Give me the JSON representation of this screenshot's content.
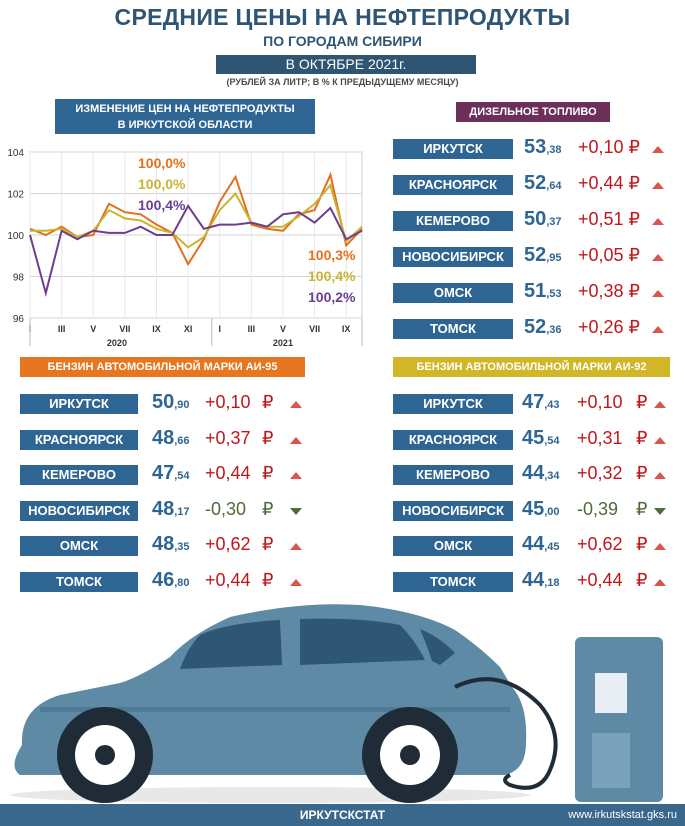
{
  "header": {
    "title": "СРЕДНИЕ ЦЕНЫ НА НЕФТЕПРОДУКТЫ",
    "subtitle": "ПО ГОРОДАМ СИБИРИ",
    "date": "В ОКТЯБРЕ 2021г.",
    "units": "(РУБЛЕЙ ЗА ЛИТР; В % К ПРЕДЫДУЩЕМУ МЕСЯЦУ)"
  },
  "chart_title_line1": "ИЗМЕНЕНИЕ ЦЕН НА НЕФТЕПРОДУКТЫ",
  "chart_title_line2": "В ИРКУТСКОЙ ОБЛАСТИ",
  "chart_data": {
    "type": "line",
    "title": "ИЗМЕНЕНИЕ ЦЕН НА НЕФТЕПРОДУКТЫ В ИРКУТСКОЙ ОБЛАСТИ",
    "ylim": [
      96,
      104
    ],
    "yticks": [
      "104",
      "102",
      "100",
      "98",
      "96"
    ],
    "xticks": [
      "I",
      "III",
      "V",
      "VII",
      "IX",
      "XI",
      "I",
      "III",
      "V",
      "VII",
      "IX"
    ],
    "years": [
      "2020",
      "2021"
    ],
    "colors": {
      "diesel": "#e2701c",
      "ai95": "#c8b332",
      "ai92": "#6b3e8e"
    },
    "series": [
      {
        "name": "diesel",
        "values": [
          100.3,
          100.0,
          100.4,
          99.9,
          100.0,
          101.5,
          101.1,
          101.0,
          100.5,
          100.1,
          98.6,
          99.8,
          101.6,
          102.8,
          100.5,
          100.3,
          100.2,
          101.0,
          101.2,
          102.9,
          99.5,
          100.3
        ]
      },
      {
        "name": "ai95",
        "values": [
          100.2,
          100.2,
          100.3,
          99.9,
          100.2,
          101.2,
          100.8,
          100.7,
          100.3,
          100.1,
          99.4,
          99.9,
          101.2,
          102.0,
          100.6,
          100.4,
          100.4,
          100.9,
          101.5,
          102.4,
          99.7,
          100.4
        ]
      },
      {
        "name": "ai92",
        "values": [
          100.0,
          97.2,
          100.2,
          99.8,
          100.2,
          100.1,
          100.1,
          100.4,
          100.0,
          100.0,
          101.4,
          100.3,
          100.5,
          100.5,
          100.6,
          100.4,
          101.0,
          101.1,
          100.6,
          101.3,
          99.8,
          100.2
        ]
      }
    ],
    "annotations_top": [
      "100,0%",
      "100,0%",
      "100,4%"
    ],
    "annotations_right": [
      "100,3%",
      "100,4%",
      "100,2%"
    ]
  },
  "diesel": {
    "title": "ДИЗЕЛЬНОЕ ТОПЛИВО",
    "rows": [
      {
        "city": "ИРКУТСК",
        "int": "53",
        "dec": ",38",
        "chg": "+0,10 ₽",
        "dir": "up"
      },
      {
        "city": "КРАСНОЯРСК",
        "int": "52",
        "dec": ",64",
        "chg": "+0,44 ₽",
        "dir": "up"
      },
      {
        "city": "КЕМЕРОВО",
        "int": "50",
        "dec": ",37",
        "chg": "+0,51 ₽",
        "dir": "up"
      },
      {
        "city": "НОВОСИБИРСК",
        "int": "52",
        "dec": ",95",
        "chg": "+0,05 ₽",
        "dir": "up"
      },
      {
        "city": "ОМСК",
        "int": "51",
        "dec": ",53",
        "chg": "+0,38 ₽",
        "dir": "up"
      },
      {
        "city": "ТОМСК",
        "int": "52",
        "dec": ",36",
        "chg": "+0,26 ₽",
        "dir": "up"
      }
    ]
  },
  "ai95": {
    "title": "БЕНЗИН АВТОМОБИЛЬНОЙ МАРКИ АИ-95",
    "rub": "₽",
    "rows": [
      {
        "city": "ИРКУТСК",
        "int": "50",
        "dec": ",90",
        "chg": "+0,10",
        "dir": "up"
      },
      {
        "city": "КРАСНОЯРСК",
        "int": "48",
        "dec": ",66",
        "chg": "+0,37",
        "dir": "up"
      },
      {
        "city": "КЕМЕРОВО",
        "int": "47",
        "dec": ",54",
        "chg": "+0,44",
        "dir": "up"
      },
      {
        "city": "НОВОСИБИРСК",
        "int": "48",
        "dec": ",17",
        "chg": "-0,30",
        "dir": "down"
      },
      {
        "city": "ОМСК",
        "int": "48",
        "dec": ",35",
        "chg": "+0,62",
        "dir": "up"
      },
      {
        "city": "ТОМСК",
        "int": "46",
        "dec": ",80",
        "chg": "+0,44",
        "dir": "up"
      }
    ]
  },
  "ai92": {
    "title": "БЕНЗИН АВТОМОБИЛЬНОЙ МАРКИ АИ-92",
    "rub": "₽",
    "rows": [
      {
        "city": "ИРКУТСК",
        "int": "47",
        "dec": ",43",
        "chg": "+0,10",
        "dir": "up"
      },
      {
        "city": "КРАСНОЯРСК",
        "int": "45",
        "dec": ",54",
        "chg": "+0,31",
        "dir": "up"
      },
      {
        "city": "КЕМЕРОВО",
        "int": "44",
        "dec": ",34",
        "chg": "+0,32",
        "dir": "up"
      },
      {
        "city": "НОВОСИБИРСК",
        "int": "45",
        "dec": ",00",
        "chg": "-0,39",
        "dir": "down"
      },
      {
        "city": "ОМСК",
        "int": "44",
        "dec": ",45",
        "chg": "+0,62",
        "dir": "up"
      },
      {
        "city": "ТОМСК",
        "int": "44",
        "dec": ",18",
        "chg": "+0,44",
        "dir": "up"
      }
    ]
  },
  "footer": {
    "org": "ИРКУТСКСТАТ",
    "url": "www.irkutskstat.gks.ru"
  }
}
